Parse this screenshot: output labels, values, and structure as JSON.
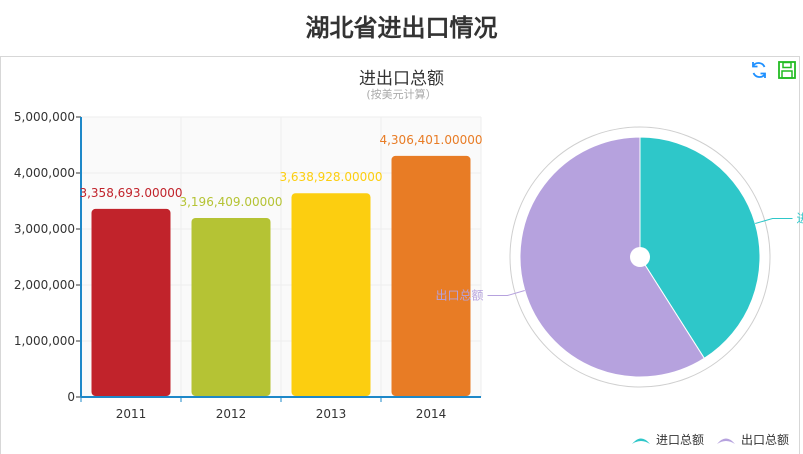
{
  "page": {
    "title": "湖北省进出口情况"
  },
  "chart_data": [
    {
      "type": "bar",
      "title": "进出口总额",
      "subtitle": "(按美元计算）",
      "categories": [
        "2011",
        "2012",
        "2013",
        "2014"
      ],
      "values": [
        3358693.0,
        3196409.0,
        3638928.0,
        4306401.0
      ],
      "value_labels": [
        "3,358,693.00000",
        "3,196,409.00000",
        "3,638,928.00000",
        "4,306,401.00000"
      ],
      "bar_colors": [
        "#c1232b",
        "#b5c334",
        "#fcce10",
        "#e87c25"
      ],
      "ylim": [
        0,
        5000000
      ],
      "y_ticks": [
        "0",
        "1,000,000",
        "2,000,000",
        "3,000,000",
        "4,000,000",
        "5,000,000"
      ],
      "grid": true
    },
    {
      "type": "pie",
      "slices": [
        {
          "name": "进口总额",
          "value": 41,
          "color": "#2ec7c9"
        },
        {
          "name": "出口总额",
          "value": 59,
          "color": "#b6a2de"
        }
      ],
      "visible_labels": [
        "进",
        "出口总额"
      ],
      "legend_position": "bottom-right"
    }
  ],
  "toolbar": {
    "icons": [
      "refresh-icon",
      "save-as-image-icon"
    ],
    "colors": [
      "#1e90ff",
      "#22bb22"
    ]
  }
}
